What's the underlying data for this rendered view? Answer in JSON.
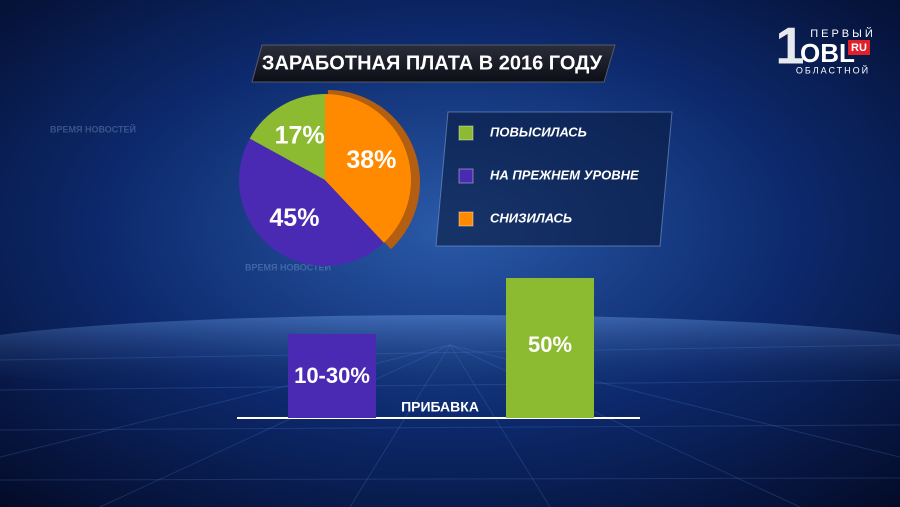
{
  "chart_data": [
    {
      "type": "pie",
      "title": "ЗАРАБОТНАЯ ПЛАТА В 2016 ГОДУ",
      "categories": [
        "ПОВЫСИЛАСЬ",
        "НА ПРЕЖНЕМ УРОВНЕ",
        "СНИЗИЛАСЬ"
      ],
      "values": [
        17,
        45,
        38
      ],
      "value_labels": [
        "17%",
        "45%",
        "38%"
      ],
      "colors": [
        "#8cba30",
        "#4a2ab2",
        "#ff8a00"
      ]
    },
    {
      "type": "bar",
      "xlabel": "ПРИБАВКА",
      "values": [
        30,
        50
      ],
      "value_labels": [
        "10-30%",
        "50%"
      ],
      "colors": [
        "#4a2ab2",
        "#8cba30"
      ]
    }
  ],
  "branding": {
    "logo_top": "ПЕРВЫЙ",
    "logo_number": "1",
    "logo_main": "OBL",
    "logo_domain": "RU",
    "logo_bottom": "ОБЛАСТНОЙ"
  },
  "background_texts": [
    "ВРЕМЯ НОВОСТЕЙ",
    "ВРЕМЯ НОВОСТЕЙ"
  ]
}
